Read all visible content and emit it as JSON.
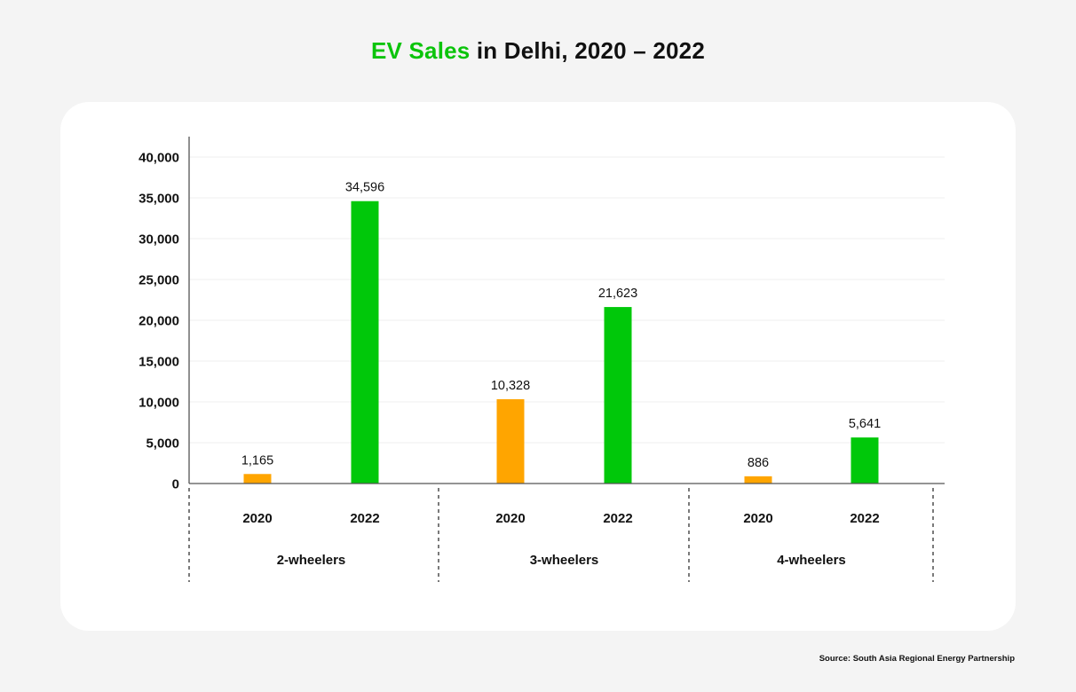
{
  "title": {
    "highlight": "EV Sales",
    "rest": " in Delhi, 2020 – 2022"
  },
  "source": "Source: South Asia Regional Energy Partnership",
  "colors": {
    "2020": "#ffa500",
    "2022": "#00c80a",
    "accent": "#0bc40b"
  },
  "chart_data": {
    "type": "bar",
    "title": "EV Sales in Delhi, 2020 – 2022",
    "xlabel": "",
    "ylabel": "",
    "ylim": [
      0,
      40000
    ],
    "yticks": [
      0,
      5000,
      10000,
      15000,
      20000,
      25000,
      30000,
      35000,
      40000
    ],
    "ytick_labels": [
      "0",
      "5,000",
      "10,000",
      "15,000",
      "20,000",
      "25,000",
      "30,000",
      "35,000",
      "40,000"
    ],
    "grid": true,
    "legend": "none",
    "categories": [
      "2-wheelers",
      "3-wheelers",
      "4-wheelers"
    ],
    "sub_categories": [
      "2020",
      "2022"
    ],
    "series": [
      {
        "name": "2020",
        "values": [
          1165,
          10328,
          886
        ],
        "labels": [
          "1,165",
          "10,328",
          "886"
        ]
      },
      {
        "name": "2022",
        "values": [
          34596,
          21623,
          5641
        ],
        "labels": [
          "34,596",
          "21,623",
          "5,641"
        ]
      }
    ]
  }
}
